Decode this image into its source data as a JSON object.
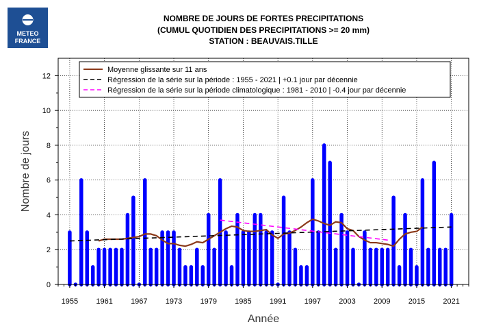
{
  "logo": {
    "line1": "METEO",
    "line2": "FRANCE",
    "color": "#1e4f94"
  },
  "chart_data": {
    "type": "bar",
    "title": [
      "NOMBRE DE JOURS DE FORTES PRECIPITATIONS",
      "(CUMUL QUOTIDIEN DES PRECIPITATIONS >= 20 mm)",
      "STATION : BEAUVAIS.TILLE"
    ],
    "xlabel": "Année",
    "ylabel": "Nombre de jours",
    "xlim": [
      1953,
      2024
    ],
    "ylim": [
      0,
      13
    ],
    "x_ticks": [
      1955,
      1961,
      1967,
      1973,
      1979,
      1985,
      1991,
      1997,
      2003,
      2009,
      2015,
      2021
    ],
    "y_ticks": [
      0,
      2,
      4,
      6,
      8,
      10,
      12
    ],
    "grid": true,
    "legend_position": "top-left",
    "bar_color": "#0000ff",
    "years": [
      1955,
      1956,
      1957,
      1958,
      1959,
      1960,
      1961,
      1962,
      1963,
      1964,
      1965,
      1966,
      1967,
      1968,
      1969,
      1970,
      1971,
      1972,
      1973,
      1974,
      1975,
      1976,
      1977,
      1978,
      1979,
      1980,
      1981,
      1982,
      1983,
      1984,
      1985,
      1986,
      1987,
      1988,
      1989,
      1990,
      1991,
      1992,
      1993,
      1994,
      1995,
      1996,
      1997,
      1998,
      1999,
      2000,
      2001,
      2002,
      2003,
      2004,
      2005,
      2006,
      2007,
      2008,
      2009,
      2010,
      2011,
      2012,
      2013,
      2014,
      2015,
      2016,
      2017,
      2018,
      2019,
      2020,
      2021
    ],
    "values": [
      3,
      0,
      6,
      3,
      1,
      2,
      2,
      2,
      2,
      2,
      4,
      5,
      0,
      6,
      2,
      2,
      3,
      3,
      3,
      2,
      1,
      1,
      2,
      1,
      4,
      2,
      6,
      3,
      1,
      4,
      3,
      3,
      4,
      4,
      3,
      3,
      0,
      5,
      3,
      2,
      1,
      1,
      6,
      3,
      8,
      7,
      2,
      4,
      3,
      2,
      0,
      3,
      2,
      2,
      2,
      2,
      5,
      1,
      4,
      2,
      1,
      6,
      2,
      7,
      2,
      2,
      4
    ],
    "series": [
      {
        "name": "Moyenne glissante sur 11 ans",
        "color": "#8b3a1a",
        "style": "solid",
        "x": [
          1960,
          1961,
          1962,
          1963,
          1964,
          1965,
          1966,
          1967,
          1968,
          1969,
          1970,
          1971,
          1972,
          1973,
          1974,
          1975,
          1976,
          1977,
          1978,
          1979,
          1980,
          1981,
          1982,
          1983,
          1984,
          1985,
          1986,
          1987,
          1988,
          1989,
          1990,
          1991,
          1992,
          1993,
          1994,
          1995,
          1996,
          1997,
          1998,
          1999,
          2000,
          2001,
          2002,
          2003,
          2004,
          2005,
          2006,
          2007,
          2008,
          2009,
          2010,
          2011,
          2012,
          2013,
          2014,
          2015,
          2016
        ],
        "values": [
          2.5,
          2.6,
          2.6,
          2.6,
          2.6,
          2.65,
          2.7,
          2.75,
          2.9,
          2.9,
          2.8,
          2.55,
          2.35,
          2.35,
          2.25,
          2.2,
          2.3,
          2.45,
          2.4,
          2.6,
          2.8,
          3.0,
          3.2,
          3.35,
          3.3,
          3.1,
          3.05,
          3.05,
          3.1,
          3.15,
          2.85,
          2.65,
          2.9,
          2.95,
          3.1,
          3.3,
          3.55,
          3.75,
          3.65,
          3.5,
          3.4,
          3.6,
          3.55,
          3.2,
          3.1,
          2.75,
          2.55,
          2.4,
          2.4,
          2.35,
          2.3,
          2.2,
          2.6,
          2.9,
          3.0,
          3.05,
          3.3
        ]
      },
      {
        "name": "Régression de la série sur la période : 1955 - 2021 | +0.1 jour par décennie",
        "color": "#000000",
        "style": "dashed",
        "x": [
          1955,
          2021
        ],
        "values": [
          2.5,
          3.3
        ]
      },
      {
        "name": "Régression de la série sur la période climatologique : 1981 - 2010 | -0.4 jour par décennie",
        "color": "#ff00ff",
        "style": "dashed",
        "x": [
          1981,
          2010
        ],
        "values": [
          3.7,
          2.55
        ]
      }
    ]
  }
}
